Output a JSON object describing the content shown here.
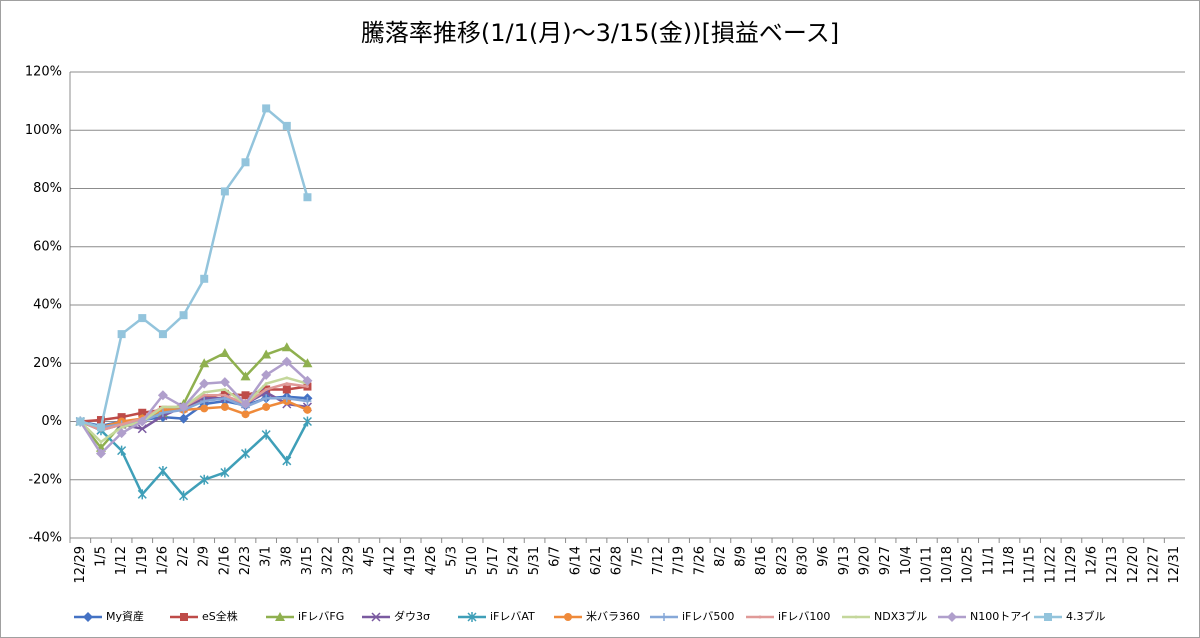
{
  "chart_data": {
    "type": "line",
    "title": "騰落率推移(1/1(月)～3/15(金))[損益ベース]",
    "categories": [
      "12/29",
      "1/5",
      "1/12",
      "1/19",
      "1/26",
      "2/2",
      "2/9",
      "2/16",
      "2/23",
      "3/1",
      "3/8",
      "3/15",
      "3/22",
      "3/29",
      "4/5",
      "4/12",
      "4/19",
      "4/26",
      "5/3",
      "5/10",
      "5/17",
      "5/24",
      "5/31",
      "6/7",
      "6/14",
      "6/21",
      "6/28",
      "7/5",
      "7/12",
      "7/19",
      "7/26",
      "8/2",
      "8/9",
      "8/16",
      "8/23",
      "8/30",
      "9/6",
      "9/13",
      "9/20",
      "9/27",
      "10/4",
      "10/11",
      "10/18",
      "10/25",
      "11/1",
      "11/8",
      "11/15",
      "11/22",
      "11/29",
      "12/6",
      "12/13",
      "12/20",
      "12/27",
      "12/31"
    ],
    "ylim": [
      -40,
      120
    ],
    "yticks": [
      {
        "value": -40,
        "label": "-40%"
      },
      {
        "value": -20,
        "label": "-20%"
      },
      {
        "value": 0,
        "label": "0%"
      },
      {
        "value": 20,
        "label": "20%"
      },
      {
        "value": 40,
        "label": "40%"
      },
      {
        "value": 60,
        "label": "60%"
      },
      {
        "value": 80,
        "label": "80%"
      },
      {
        "value": 100,
        "label": "100%"
      },
      {
        "value": 120,
        "label": "120%"
      }
    ],
    "grid": true,
    "legend": "bottom",
    "series": [
      {
        "name": "My資産",
        "color": "#4472c4",
        "marker": "diamond",
        "values": [
          0,
          -1.5,
          0,
          0.5,
          1.5,
          1,
          6,
          7,
          5.5,
          8,
          8.5,
          8,
          null,
          null,
          null,
          null,
          null,
          null,
          null,
          null,
          null,
          null,
          null,
          null,
          null,
          null,
          null,
          null,
          null,
          null,
          null,
          null,
          null,
          null,
          null,
          null,
          null,
          null,
          null,
          null,
          null,
          null,
          null,
          null,
          null,
          null,
          null,
          null,
          null,
          null,
          null,
          null,
          null,
          null
        ]
      },
      {
        "name": "eS全株",
        "color": "#be4b48",
        "marker": "square",
        "values": [
          0,
          0.5,
          1.5,
          3,
          4,
          4.5,
          8,
          9.5,
          9,
          11,
          11,
          12,
          null,
          null,
          null,
          null,
          null,
          null,
          null,
          null,
          null,
          null,
          null,
          null,
          null,
          null,
          null,
          null,
          null,
          null,
          null,
          null,
          null,
          null,
          null,
          null,
          null,
          null,
          null,
          null,
          null,
          null,
          null,
          null,
          null,
          null,
          null,
          null,
          null,
          null,
          null,
          null,
          null,
          null
        ]
      },
      {
        "name": "iFレバFG",
        "color": "#8fb04f",
        "marker": "triangle",
        "values": [
          0,
          -9,
          -1,
          1,
          3,
          6,
          20,
          23.5,
          15.5,
          23,
          25.5,
          20,
          null,
          null,
          null,
          null,
          null,
          null,
          null,
          null,
          null,
          null,
          null,
          null,
          null,
          null,
          null,
          null,
          null,
          null,
          null,
          null,
          null,
          null,
          null,
          null,
          null,
          null,
          null,
          null,
          null,
          null,
          null,
          null,
          null,
          null,
          null,
          null,
          null,
          null,
          null,
          null,
          null,
          null
        ]
      },
      {
        "name": "ダウ3σ",
        "color": "#7a5aa0",
        "marker": "x",
        "values": [
          0,
          -3,
          -1,
          -2.5,
          2,
          5,
          8,
          8,
          6,
          10,
          6,
          5,
          null,
          null,
          null,
          null,
          null,
          null,
          null,
          null,
          null,
          null,
          null,
          null,
          null,
          null,
          null,
          null,
          null,
          null,
          null,
          null,
          null,
          null,
          null,
          null,
          null,
          null,
          null,
          null,
          null,
          null,
          null,
          null,
          null,
          null,
          null,
          null,
          null,
          null,
          null,
          null,
          null,
          null
        ]
      },
      {
        "name": "iFレバAT",
        "color": "#3f9fb8",
        "marker": "star",
        "values": [
          0,
          -3,
          -10,
          -25,
          -17,
          -25.5,
          -20,
          -17.5,
          -11,
          -4.5,
          -13.5,
          0,
          null,
          null,
          null,
          null,
          null,
          null,
          null,
          null,
          null,
          null,
          null,
          null,
          null,
          null,
          null,
          null,
          null,
          null,
          null,
          null,
          null,
          null,
          null,
          null,
          null,
          null,
          null,
          null,
          null,
          null,
          null,
          null,
          null,
          null,
          null,
          null,
          null,
          null,
          null,
          null,
          null,
          null
        ]
      },
      {
        "name": "米バラ360",
        "color": "#ef8a3a",
        "marker": "circle",
        "values": [
          0,
          -2,
          0,
          1,
          4,
          4,
          4.5,
          5,
          2.5,
          5,
          7,
          4,
          null,
          null,
          null,
          null,
          null,
          null,
          null,
          null,
          null,
          null,
          null,
          null,
          null,
          null,
          null,
          null,
          null,
          null,
          null,
          null,
          null,
          null,
          null,
          null,
          null,
          null,
          null,
          null,
          null,
          null,
          null,
          null,
          null,
          null,
          null,
          null,
          null,
          null,
          null,
          null,
          null,
          null
        ]
      },
      {
        "name": "iFレバ500",
        "color": "#86a8d8",
        "marker": "plus",
        "values": [
          0,
          -2,
          -1,
          0,
          3,
          4,
          7,
          8,
          5,
          8,
          8,
          7,
          null,
          null,
          null,
          null,
          null,
          null,
          null,
          null,
          null,
          null,
          null,
          null,
          null,
          null,
          null,
          null,
          null,
          null,
          null,
          null,
          null,
          null,
          null,
          null,
          null,
          null,
          null,
          null,
          null,
          null,
          null,
          null,
          null,
          null,
          null,
          null,
          null,
          null,
          null,
          null,
          null,
          null
        ]
      },
      {
        "name": "iFレバ100",
        "color": "#e09a98",
        "marker": "none",
        "values": [
          0,
          -3,
          -1,
          1,
          5,
          5,
          9,
          9,
          6,
          11,
          13,
          12,
          null,
          null,
          null,
          null,
          null,
          null,
          null,
          null,
          null,
          null,
          null,
          null,
          null,
          null,
          null,
          null,
          null,
          null,
          null,
          null,
          null,
          null,
          null,
          null,
          null,
          null,
          null,
          null,
          null,
          null,
          null,
          null,
          null,
          null,
          null,
          null,
          null,
          null,
          null,
          null,
          null,
          null
        ]
      },
      {
        "name": "NDX3ブル",
        "color": "#c4d79b",
        "marker": "none",
        "values": [
          0,
          -7,
          -2,
          0,
          5,
          5,
          10,
          11,
          6,
          13,
          15,
          13,
          null,
          null,
          null,
          null,
          null,
          null,
          null,
          null,
          null,
          null,
          null,
          null,
          null,
          null,
          null,
          null,
          null,
          null,
          null,
          null,
          null,
          null,
          null,
          null,
          null,
          null,
          null,
          null,
          null,
          null,
          null,
          null,
          null,
          null,
          null,
          null,
          null,
          null,
          null,
          null,
          null,
          null
        ]
      },
      {
        "name": "N100トアイ",
        "color": "#b09fcc",
        "marker": "diamond",
        "values": [
          0,
          -11,
          -4,
          0,
          9,
          5,
          13,
          13.5,
          6,
          16,
          20.5,
          14,
          null,
          null,
          null,
          null,
          null,
          null,
          null,
          null,
          null,
          null,
          null,
          null,
          null,
          null,
          null,
          null,
          null,
          null,
          null,
          null,
          null,
          null,
          null,
          null,
          null,
          null,
          null,
          null,
          null,
          null,
          null,
          null,
          null,
          null,
          null,
          null,
          null,
          null,
          null,
          null,
          null,
          null
        ]
      },
      {
        "name": "4.3ブル",
        "color": "#93c4dc",
        "marker": "square",
        "values": [
          0,
          -2,
          30,
          35.5,
          30,
          36.5,
          49,
          79,
          89,
          107.5,
          101.5,
          77,
          null,
          null,
          null,
          null,
          null,
          null,
          null,
          null,
          null,
          null,
          null,
          null,
          null,
          null,
          null,
          null,
          null,
          null,
          null,
          null,
          null,
          null,
          null,
          null,
          null,
          null,
          null,
          null,
          null,
          null,
          null,
          null,
          null,
          null,
          null,
          null,
          null,
          null,
          null,
          null,
          null,
          null
        ]
      }
    ]
  }
}
